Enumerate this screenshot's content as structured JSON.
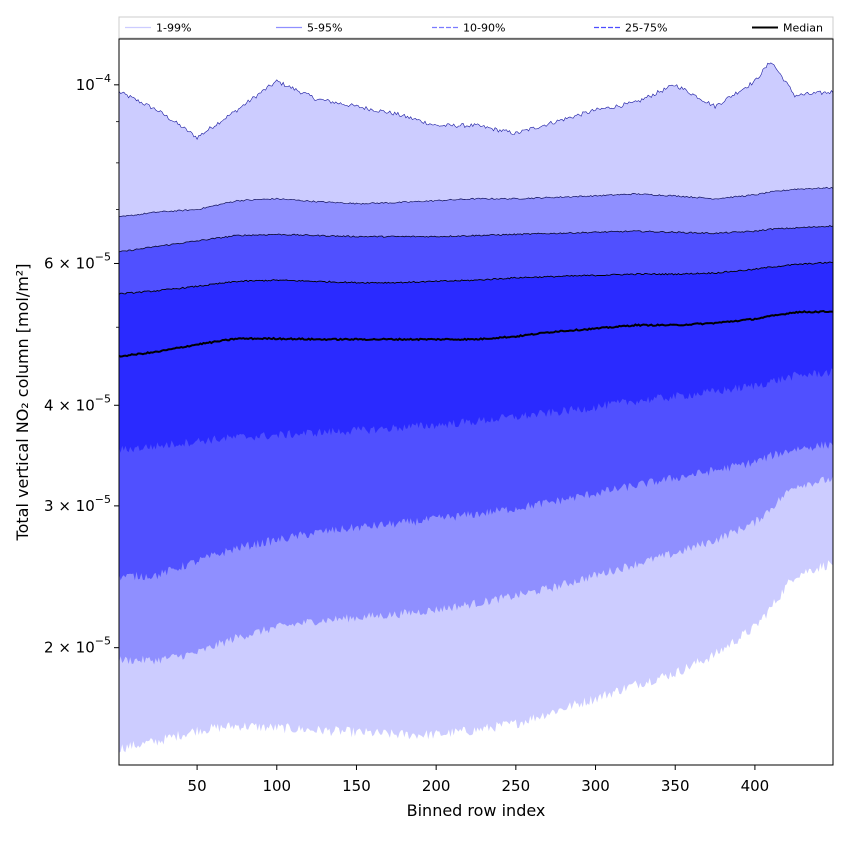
{
  "chart_data": {
    "type": "area",
    "xlabel": "Binned row index",
    "ylabel": "Total vertical NO₂ column [mol/m²]",
    "x_range": [
      1,
      449
    ],
    "y_range": [
      1.43e-05,
      0.000114
    ],
    "y_scale": "log",
    "x_ticks": [
      50,
      100,
      150,
      200,
      250,
      300,
      350,
      400
    ],
    "y_ticks": [
      {
        "value": 2e-05,
        "mantissa": "2",
        "exp": "−5"
      },
      {
        "value": 3e-05,
        "mantissa": "3",
        "exp": "−5"
      },
      {
        "value": 4e-05,
        "mantissa": "4",
        "exp": "−5"
      },
      {
        "value": 6e-05,
        "mantissa": "6",
        "exp": "−5"
      },
      {
        "value": 0.0001,
        "mantissa": "10",
        "exp": "−4"
      }
    ],
    "legend": [
      {
        "label": "1-99%",
        "color": "#ccccff",
        "dash": "solid"
      },
      {
        "label": "5-95%",
        "color": "#8f8fff",
        "dash": "solid"
      },
      {
        "label": "10-90%",
        "color": "#7a7aff",
        "dash": "dashed"
      },
      {
        "label": "25-75%",
        "color": "#4d4dff",
        "dash": "dashed"
      },
      {
        "label": "Median",
        "color": "#000000",
        "dash": "solid"
      }
    ],
    "legend_position": "top",
    "grid": false,
    "x": [
      1,
      25,
      50,
      75,
      100,
      125,
      150,
      175,
      200,
      225,
      250,
      275,
      300,
      325,
      350,
      375,
      400,
      410,
      425,
      449
    ],
    "bands": [
      {
        "name": "1-99%",
        "color": "#ccccff",
        "lower": [
          1.5e-05,
          1.53e-05,
          1.58e-05,
          1.6e-05,
          1.59e-05,
          1.58e-05,
          1.57e-05,
          1.56e-05,
          1.56e-05,
          1.58e-05,
          1.61e-05,
          1.67e-05,
          1.73e-05,
          1.8e-05,
          1.86e-05,
          1.96e-05,
          2.12e-05,
          2.24e-05,
          2.46e-05,
          2.55e-05
        ],
        "upper": [
          9.8e-05,
          9.3e-05,
          8.6e-05,
          9.3e-05,
          0.000101,
          9.6e-05,
          9.4e-05,
          9.2e-05,
          8.9e-05,
          8.9e-05,
          8.7e-05,
          9e-05,
          9.3e-05,
          9.5e-05,
          0.0001,
          9.4e-05,
          0.000101,
          0.000107,
          9.7e-05,
          9.8e-05
        ]
      },
      {
        "name": "5-95%",
        "color": "#8f8fff",
        "lower": [
          1.93e-05,
          1.93e-05,
          1.97e-05,
          2.06e-05,
          2.12e-05,
          2.16e-05,
          2.18e-05,
          2.2e-05,
          2.23e-05,
          2.27e-05,
          2.32e-05,
          2.38e-05,
          2.46e-05,
          2.54e-05,
          2.62e-05,
          2.72e-05,
          2.86e-05,
          2.98e-05,
          3.18e-05,
          3.24e-05
        ],
        "upper": [
          6.85e-05,
          6.95e-05,
          7e-05,
          7.18e-05,
          7.22e-05,
          7.16e-05,
          7.12e-05,
          7.14e-05,
          7.18e-05,
          7.22e-05,
          7.22e-05,
          7.25e-05,
          7.28e-05,
          7.32e-05,
          7.28e-05,
          7.22e-05,
          7.3e-05,
          7.36e-05,
          7.42e-05,
          7.45e-05
        ]
      },
      {
        "name": "10-90%",
        "color": "#5050ff",
        "lower": [
          2.45e-05,
          2.46e-05,
          2.56e-05,
          2.66e-05,
          2.72e-05,
          2.78e-05,
          2.82e-05,
          2.85e-05,
          2.89e-05,
          2.93e-05,
          2.98e-05,
          3.04e-05,
          3.11e-05,
          3.18e-05,
          3.25e-05,
          3.32e-05,
          3.4e-05,
          3.46e-05,
          3.53e-05,
          3.58e-05
        ],
        "upper": [
          6.2e-05,
          6.3e-05,
          6.4e-05,
          6.5e-05,
          6.52e-05,
          6.5e-05,
          6.48e-05,
          6.48e-05,
          6.48e-05,
          6.5e-05,
          6.52e-05,
          6.54e-05,
          6.56e-05,
          6.58e-05,
          6.56e-05,
          6.54e-05,
          6.58e-05,
          6.62e-05,
          6.64e-05,
          6.68e-05
        ]
      },
      {
        "name": "25-75%",
        "color": "#2a2aff",
        "lower": [
          3.52e-05,
          3.56e-05,
          3.61e-05,
          3.65e-05,
          3.67e-05,
          3.7e-05,
          3.72e-05,
          3.75e-05,
          3.78e-05,
          3.82e-05,
          3.87e-05,
          3.92e-05,
          3.98e-05,
          4.05e-05,
          4.1e-05,
          4.16e-05,
          4.23e-05,
          4.28e-05,
          4.35e-05,
          4.4e-05
        ],
        "upper": [
          5.5e-05,
          5.55e-05,
          5.62e-05,
          5.7e-05,
          5.72e-05,
          5.7e-05,
          5.68e-05,
          5.68e-05,
          5.7e-05,
          5.72e-05,
          5.76e-05,
          5.78e-05,
          5.8e-05,
          5.82e-05,
          5.82e-05,
          5.84e-05,
          5.9e-05,
          5.94e-05,
          5.98e-05,
          6.02e-05
        ]
      }
    ],
    "median": [
      4.6e-05,
      4.66e-05,
      4.76e-05,
      4.84e-05,
      4.84e-05,
      4.83e-05,
      4.83e-05,
      4.83e-05,
      4.83e-05,
      4.83e-05,
      4.87e-05,
      4.94e-05,
      4.98e-05,
      5.03e-05,
      5.03e-05,
      5.06e-05,
      5.12e-05,
      5.16e-05,
      5.22e-05,
      5.23e-05
    ]
  }
}
